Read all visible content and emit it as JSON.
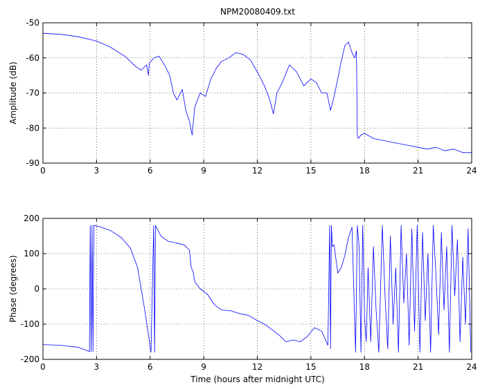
{
  "chart_data": [
    {
      "type": "line",
      "title": "NPM20080409.txt",
      "xlabel": "",
      "ylabel": "Amplitude (dB)",
      "xlim": [
        0,
        24
      ],
      "ylim": [
        -90,
        -50
      ],
      "xticks": [
        0,
        3,
        6,
        9,
        12,
        15,
        18,
        21,
        24
      ],
      "yticks": [
        -90,
        -80,
        -70,
        -60,
        -50
      ],
      "grid": true,
      "series": [
        {
          "color": "#0000ff",
          "x": [
            0,
            1,
            2,
            3,
            3.8,
            4.6,
            5.2,
            5.5,
            5.8,
            5.9,
            5.95,
            6.2,
            6.5,
            6.8,
            7.1,
            7.3,
            7.5,
            7.8,
            8.0,
            8.2,
            8.35,
            8.5,
            8.8,
            9.1,
            9.4,
            9.7,
            10.0,
            10.4,
            10.8,
            11.2,
            11.6,
            12.0,
            12.4,
            12.7,
            12.9,
            13.1,
            13.4,
            13.8,
            14.2,
            14.6,
            15.0,
            15.3,
            15.6,
            15.9,
            16.1,
            16.3,
            16.5,
            16.7,
            16.9,
            17.1,
            17.3,
            17.45,
            17.55,
            17.6,
            17.65,
            17.8,
            18.0,
            18.5,
            19.0,
            19.5,
            20.0,
            20.5,
            21.0,
            21.5,
            22.0,
            22.5,
            23.0,
            23.5,
            24.0
          ],
          "y": [
            -53.0,
            -53.3,
            -54.0,
            -55.2,
            -57.0,
            -59.6,
            -62.5,
            -63.5,
            -62.0,
            -65.0,
            -61.5,
            -60.0,
            -59.5,
            -62.0,
            -65.0,
            -70.0,
            -72.0,
            -69.0,
            -75.0,
            -78.0,
            -82.0,
            -74.0,
            -70.0,
            -71.0,
            -66.0,
            -63.0,
            -61.0,
            -60.0,
            -58.5,
            -59.0,
            -60.5,
            -64.0,
            -68.0,
            -72.0,
            -76.0,
            -70.0,
            -67.0,
            -62.0,
            -64.0,
            -68.0,
            -66.0,
            -67.0,
            -70.0,
            -70.0,
            -75.0,
            -71.0,
            -66.0,
            -61.0,
            -56.5,
            -55.5,
            -58.5,
            -60.0,
            -58.0,
            -82.0,
            -83.0,
            -82.0,
            -81.5,
            -83.0,
            -83.5,
            -84.0,
            -84.5,
            -85.0,
            -85.5,
            -86.0,
            -85.5,
            -86.5,
            -86.0,
            -87.0,
            -87.0
          ]
        }
      ]
    },
    {
      "type": "line",
      "title": "",
      "xlabel": "Time (hours after midnight UTC)",
      "ylabel": "Phase (degrees)",
      "xlim": [
        0,
        24
      ],
      "ylim": [
        -200,
        200
      ],
      "xticks": [
        0,
        3,
        6,
        9,
        12,
        15,
        18,
        21,
        24
      ],
      "yticks": [
        -200,
        -100,
        0,
        100,
        200
      ],
      "grid": true,
      "series": [
        {
          "color": "#0000ff",
          "x": [
            0,
            1,
            2,
            2.6,
            2.65,
            2.7,
            2.75,
            2.8,
            2.85,
            3.2,
            3.8,
            4.4,
            4.9,
            5.3,
            5.7,
            6.05,
            6.2,
            6.25,
            6.3,
            6.6,
            7.0,
            7.5,
            7.9,
            8.2,
            8.3,
            8.4,
            8.5,
            8.8,
            9.2,
            9.6,
            10.0,
            10.5,
            11.0,
            11.5,
            12.0,
            12.4,
            12.8,
            13.2,
            13.6,
            14.0,
            14.4,
            14.8,
            15.2,
            15.6,
            15.95,
            16.05,
            16.1,
            16.15,
            16.2,
            16.3,
            16.5,
            16.7,
            16.9,
            17.1,
            17.3,
            17.5,
            17.6,
            17.7,
            17.8,
            17.9,
            18.0,
            18.1,
            18.2,
            18.35,
            18.5,
            18.65,
            18.8,
            19.0,
            19.15,
            19.3,
            19.45,
            19.6,
            19.75,
            19.9,
            20.05,
            20.2,
            20.35,
            20.5,
            20.65,
            20.8,
            20.95,
            21.1,
            21.25,
            21.4,
            21.55,
            21.7,
            21.85,
            22.0,
            22.15,
            22.3,
            22.45,
            22.6,
            22.75,
            22.9,
            23.05,
            23.2,
            23.35,
            23.5,
            23.65,
            23.8,
            23.95
          ],
          "y": [
            -158,
            -160,
            -166,
            -178,
            180,
            -178,
            180,
            -178,
            180,
            176,
            165,
            145,
            115,
            60,
            -60,
            -180,
            180,
            -180,
            180,
            150,
            135,
            130,
            125,
            110,
            60,
            50,
            20,
            0,
            -15,
            -45,
            -60,
            -62,
            -70,
            -75,
            -90,
            -100,
            -115,
            -130,
            -150,
            -145,
            -150,
            -135,
            -110,
            -120,
            -160,
            180,
            -170,
            180,
            120,
            125,
            45,
            60,
            95,
            145,
            175,
            -180,
            180,
            120,
            -180,
            180,
            -80,
            -150,
            60,
            -150,
            120,
            -60,
            -180,
            180,
            -20,
            -170,
            150,
            -100,
            60,
            -180,
            180,
            -40,
            100,
            -160,
            170,
            -120,
            180,
            -180,
            160,
            -90,
            100,
            -180,
            180,
            40,
            -130,
            160,
            -60,
            120,
            -180,
            180,
            -20,
            140,
            -150,
            90,
            -100,
            170,
            -180
          ]
        }
      ]
    }
  ]
}
